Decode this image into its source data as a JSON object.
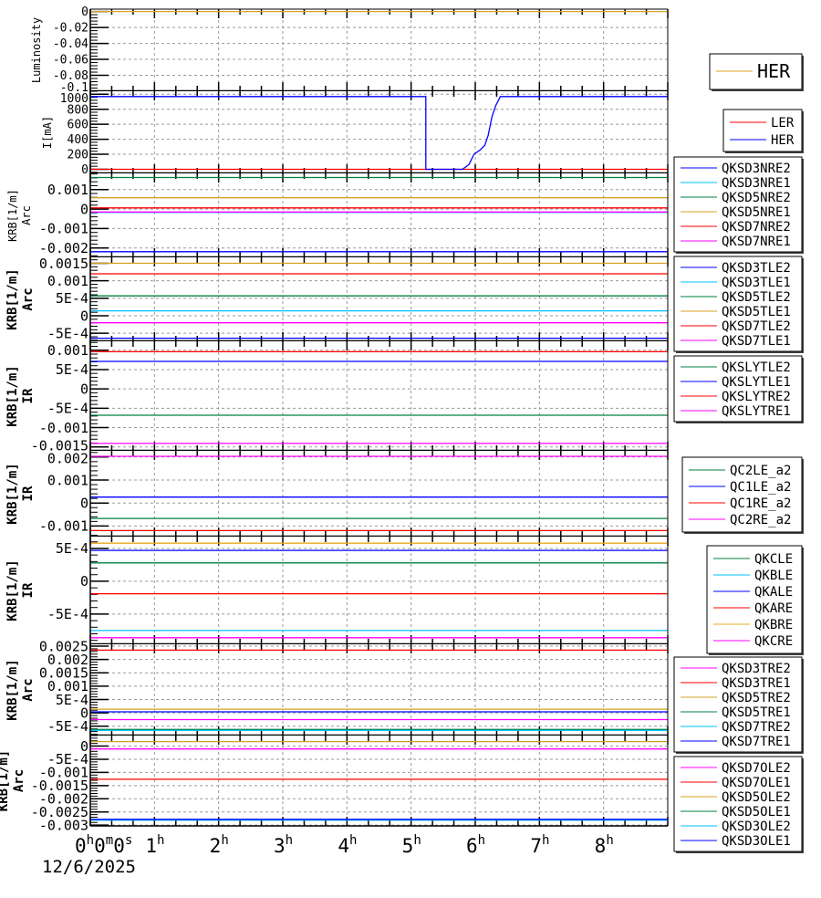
{
  "x_axis": {
    "unit": "hours",
    "xlim": [
      0,
      9
    ],
    "ticks": [
      0,
      1,
      2,
      3,
      4,
      5,
      6,
      7,
      8
    ],
    "tick_labels": [
      "0h0m0s",
      "1h",
      "2h",
      "3h",
      "4h",
      "5h",
      "6h",
      "7h",
      "8h"
    ],
    "date": "12/6/2025"
  },
  "chart_data": [
    {
      "type": "line",
      "ylabel": [
        "Luminosity"
      ],
      "ylim": [
        -0.1,
        0.003
      ],
      "yticks": [
        0,
        -0.02,
        -0.04,
        -0.06,
        -0.08,
        -0.1
      ],
      "ytick_labels": [
        "0",
        "-0.02",
        "-0.04",
        "-0.06",
        "-0.08",
        "-0.1"
      ],
      "grid": true,
      "series": [
        {
          "name": "HER",
          "color": "#daa520",
          "x": [
            0,
            9
          ],
          "y": [
            0,
            0
          ]
        }
      ]
    },
    {
      "type": "line",
      "ylabel": [
        "I[mA]"
      ],
      "ylim": [
        -55,
        1040
      ],
      "yticks": [
        0,
        200,
        400,
        600,
        800,
        1000
      ],
      "ytick_labels": [
        "0",
        "200",
        "400",
        "600",
        "800",
        "1000"
      ],
      "grid": true,
      "series": [
        {
          "name": "LER",
          "color": "#ff0000",
          "x": [
            0,
            9
          ],
          "y": [
            0,
            0
          ]
        },
        {
          "name": "HER",
          "color": "#0000ff",
          "x": [
            0,
            5.23,
            5.23,
            5.8,
            5.9,
            5.98,
            6.08,
            6.15,
            6.2,
            6.26,
            6.32,
            6.39,
            9
          ],
          "y": [
            970,
            970,
            0,
            0,
            60,
            200,
            260,
            320,
            450,
            700,
            850,
            970,
            970
          ]
        }
      ]
    },
    {
      "type": "line",
      "ylabel": [
        "KRB[1/m]",
        "Arc"
      ],
      "ylim": [
        -0.00248,
        0.00183
      ],
      "yticks": [
        0.001,
        0,
        -0.001,
        -0.002
      ],
      "ytick_labels": [
        "0.001",
        "0",
        "-0.001",
        "-0.002"
      ],
      "grid": true,
      "series": [
        {
          "name": "QKSD3NRE2",
          "color": "#0000ff",
          "x": [
            0,
            9
          ],
          "y": [
            -0.00219,
            -0.00219
          ]
        },
        {
          "name": "QKSD3NRE1",
          "color": "#00bfff",
          "x": [
            0,
            9
          ],
          "y": [
            -0.00017,
            -0.00017
          ]
        },
        {
          "name": "QKSD5NRE2",
          "color": "#008040",
          "x": [
            0,
            9
          ],
          "y": [
            0.00162,
            0.00162
          ]
        },
        {
          "name": "QKSD5NRE1",
          "color": "#d4a020",
          "x": [
            0,
            9
          ],
          "y": [
            0.00058,
            0.00058
          ]
        },
        {
          "name": "QKSD7NRE2",
          "color": "#ff0000",
          "x": [
            0,
            9
          ],
          "y": [
            6e-05,
            6e-05
          ]
        },
        {
          "name": "QKSD7NRE1",
          "color": "#ff00ff",
          "x": [
            0,
            9
          ],
          "y": [
            -0.00015,
            -0.00015
          ]
        }
      ]
    },
    {
      "type": "line",
      "ylabel": [
        "KRB[1/m]",
        "Arc"
      ],
      "ylim": [
        -0.00073,
        0.00167
      ],
      "yticks": [
        0.0015,
        0.001,
        0.0005,
        0,
        -0.0005
      ],
      "ytick_labels": [
        "0.0015",
        "0.001",
        "5E-4",
        "0",
        "-5E-4"
      ],
      "grid": true,
      "series": [
        {
          "name": "QKSD3TLE2",
          "color": "#0000ff",
          "x": [
            0,
            9
          ],
          "y": [
            -0.00064,
            -0.00064
          ]
        },
        {
          "name": "QKSD3TLE1",
          "color": "#00bfff",
          "x": [
            0,
            9
          ],
          "y": [
            0.00014,
            0.00014
          ]
        },
        {
          "name": "QKSD5TLE2",
          "color": "#008040",
          "x": [
            0,
            9
          ],
          "y": [
            0.00057,
            0.00057
          ]
        },
        {
          "name": "QKSD5TLE1",
          "color": "#d4a020",
          "x": [
            0,
            9
          ],
          "y": [
            0.0015,
            0.0015
          ]
        },
        {
          "name": "QKSD7TLE2",
          "color": "#ff0000",
          "x": [
            0,
            9
          ],
          "y": [
            0.0012,
            0.0012
          ]
        },
        {
          "name": "QKSD7TLE1",
          "color": "#ff00ff",
          "x": [
            0,
            9
          ],
          "y": [
            -0.0002,
            -0.0002
          ]
        }
      ]
    },
    {
      "type": "line",
      "ylabel": [
        "KRB[1/m]",
        "IR"
      ],
      "ylim": [
        -0.0016,
        0.00123
      ],
      "yticks": [
        0.001,
        0.0005,
        0,
        -0.0005,
        -0.001,
        -0.0015
      ],
      "ytick_labels": [
        "0.001",
        "5E-4",
        "0",
        "-5E-4",
        "-0.001",
        "-0.0015"
      ],
      "grid": true,
      "series": [
        {
          "name": "QKSLYTLE2",
          "color": "#008040",
          "x": [
            0,
            9
          ],
          "y": [
            -0.00068,
            -0.00068
          ]
        },
        {
          "name": "QKSLYTLE1",
          "color": "#0000ff",
          "x": [
            0,
            9
          ],
          "y": [
            0.00071,
            0.00071
          ]
        },
        {
          "name": "QKSLYTRE2",
          "color": "#ff0000",
          "x": [
            0,
            9
          ],
          "y": [
            0.00096,
            0.00096
          ]
        },
        {
          "name": "QKSLYTRE1",
          "color": "#ff00ff",
          "x": [
            0,
            9
          ],
          "y": [
            -0.00141,
            -0.00141
          ]
        }
      ]
    },
    {
      "type": "line",
      "ylabel": [
        "KRB[1/m]",
        "IR"
      ],
      "ylim": [
        -0.00146,
        0.00227
      ],
      "yticks": [
        0.002,
        0.001,
        0,
        -0.001
      ],
      "ytick_labels": [
        "0.002",
        "0.001",
        "0",
        "-0.001"
      ],
      "grid": true,
      "series": [
        {
          "name": "QC2LE_a2",
          "color": "#008040",
          "x": [
            0,
            9
          ],
          "y": [
            -0.00067,
            -0.00067
          ]
        },
        {
          "name": "QC1LE_a2",
          "color": "#0000ff",
          "x": [
            0,
            9
          ],
          "y": [
            0.00026,
            0.00026
          ]
        },
        {
          "name": "QC1RE_a2",
          "color": "#ff0000",
          "x": [
            0,
            9
          ],
          "y": [
            -0.0012,
            -0.0012
          ]
        },
        {
          "name": "QC2RE_a2",
          "color": "#ff00ff",
          "x": [
            0,
            9
          ],
          "y": [
            0.00203,
            0.00203
          ]
        }
      ]
    },
    {
      "type": "line",
      "ylabel": [
        "KRB[1/m]",
        "IR"
      ],
      "ylim": [
        -0.00096,
        0.00068
      ],
      "yticks": [
        0.0005,
        0,
        -0.0005
      ],
      "ytick_labels": [
        "5E-4",
        "0",
        "-5E-4"
      ],
      "grid": true,
      "series": [
        {
          "name": "QKCLE",
          "color": "#008040",
          "x": [
            0,
            9
          ],
          "y": [
            0.00028,
            0.00028
          ]
        },
        {
          "name": "QKBLE",
          "color": "#00bfff",
          "x": [
            0,
            9
          ],
          "y": [
            -0.00075,
            -0.00075
          ]
        },
        {
          "name": "QKALE",
          "color": "#0000ff",
          "x": [
            0,
            9
          ],
          "y": [
            0.00047,
            0.00047
          ]
        },
        {
          "name": "QKARE",
          "color": "#ff0000",
          "x": [
            0,
            9
          ],
          "y": [
            -0.00019,
            -0.00019
          ]
        },
        {
          "name": "QKBRE",
          "color": "#e8a820",
          "x": [
            0,
            9
          ],
          "y": [
            0.00058,
            0.00058
          ]
        },
        {
          "name": "QKCRE",
          "color": "#ff00ff",
          "x": [
            0,
            9
          ],
          "y": [
            -0.00086,
            -0.00086
          ]
        }
      ]
    },
    {
      "type": "line",
      "ylabel": [
        "KRB[1/m]",
        "Arc"
      ],
      "ylim": [
        -0.00085,
        0.00257
      ],
      "yticks": [
        0.0025,
        0.002,
        0.0015,
        0.001,
        0.0005,
        0,
        -0.0005
      ],
      "ytick_labels": [
        "0.0025",
        "0.002",
        "0.0015",
        "0.001",
        "5E-4",
        "0",
        "-5E-4"
      ],
      "grid": true,
      "series": [
        {
          "name": "QKSD3TRE2",
          "color": "#ff00ff",
          "x": [
            0,
            9
          ],
          "y": [
            -0.00025,
            -0.00025
          ]
        },
        {
          "name": "QKSD3TRE1",
          "color": "#ff0000",
          "x": [
            0,
            9
          ],
          "y": [
            0.00235,
            0.00235
          ]
        },
        {
          "name": "QKSD5TRE2",
          "color": "#d4a020",
          "x": [
            0,
            9
          ],
          "y": [
            0.00014,
            0.00014
          ]
        },
        {
          "name": "QKSD5TRE1",
          "color": "#008040",
          "x": [
            0,
            9
          ],
          "y": [
            -0.00062,
            -0.00062
          ]
        },
        {
          "name": "QKSD7TRE2",
          "color": "#00bfff",
          "x": [
            0,
            9
          ],
          "y": [
            -0.00066,
            -0.00066
          ]
        },
        {
          "name": "QKSD7TRE1",
          "color": "#0000ff",
          "x": [
            0,
            9
          ],
          "y": [
            4e-05,
            4e-05
          ]
        }
      ]
    },
    {
      "type": "line",
      "ylabel": [
        "KRB[1/m]",
        "Arc"
      ],
      "ylim": [
        -0.00303,
        0.0004
      ],
      "yticks": [
        0,
        -0.0005,
        -0.001,
        -0.0015,
        -0.002,
        -0.0025,
        -0.003
      ],
      "ytick_labels": [
        "0",
        "-5E-4",
        "-0.001",
        "-0.0015",
        "-0.002",
        "-0.0025",
        "-0.003"
      ],
      "grid": true,
      "series": [
        {
          "name": "QKSD7OLE2",
          "color": "#ff00ff",
          "x": [
            0,
            9
          ],
          "y": [
            -0.00011,
            -0.00011
          ]
        },
        {
          "name": "QKSD7OLE1",
          "color": "#ff0000",
          "x": [
            0,
            9
          ],
          "y": [
            -0.00126,
            -0.00126
          ]
        },
        {
          "name": "QKSD5OLE2",
          "color": "#d4a020",
          "x": [
            0,
            9
          ],
          "y": [
            0.00017,
            0.00017
          ]
        },
        {
          "name": "QKSD5OLE1",
          "color": "#008040",
          "x": [
            0,
            9
          ],
          "y": [
            -0.0028,
            -0.0028
          ]
        },
        {
          "name": "QKSD3OLE2",
          "color": "#00bfff",
          "x": [
            0,
            9
          ],
          "y": [
            -0.00281,
            -0.00281
          ]
        },
        {
          "name": "QKSD3OLE1",
          "color": "#0000ff",
          "x": [
            0,
            9
          ],
          "y": [
            -0.00278,
            -0.00278
          ]
        }
      ]
    }
  ]
}
